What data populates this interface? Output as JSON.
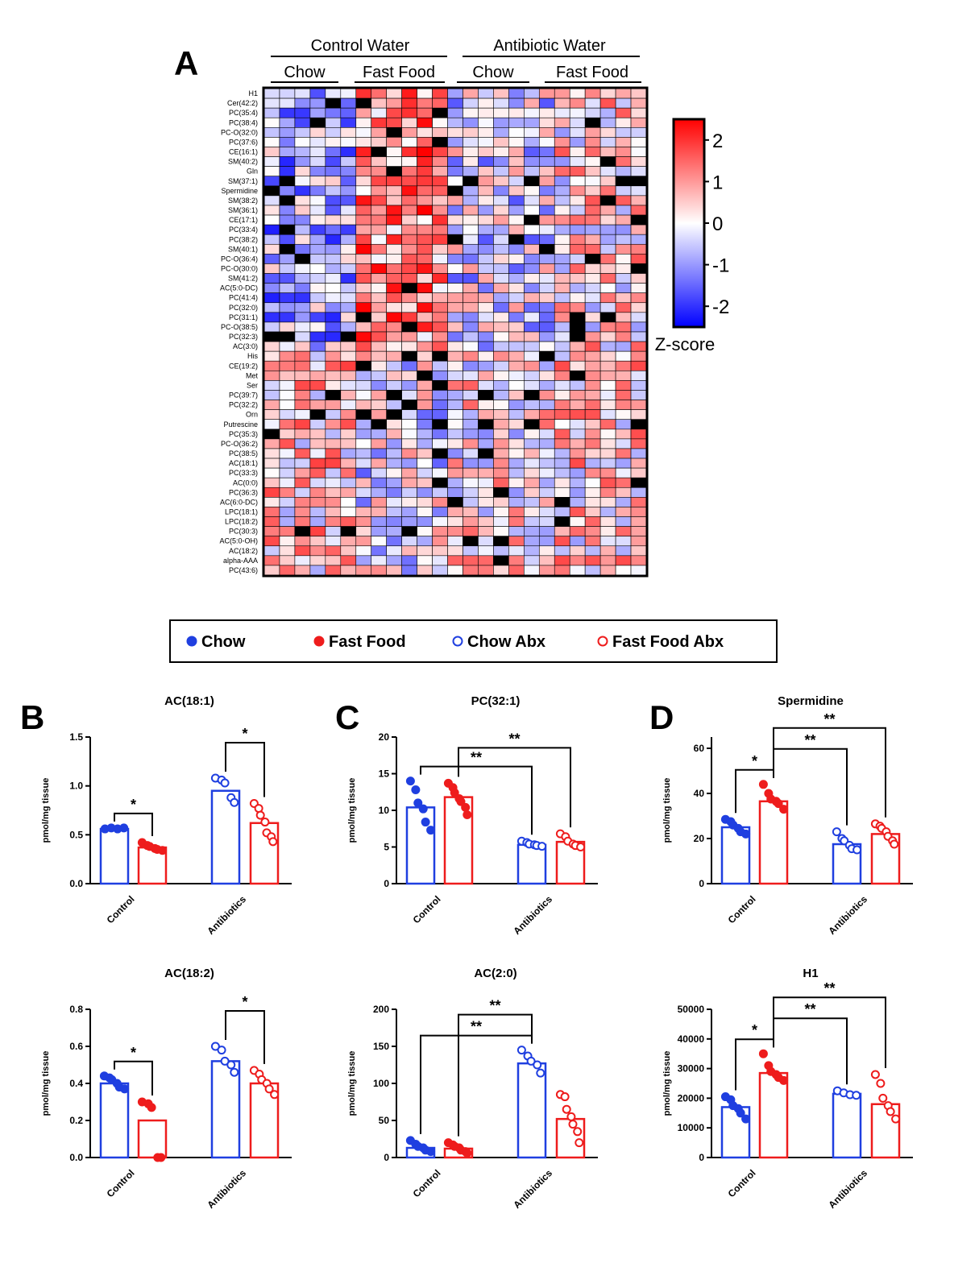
{
  "panel_labels": [
    "A",
    "B",
    "C",
    "D"
  ],
  "heatmap": {
    "group_headers": [
      "Control Water",
      "Antibiotic Water"
    ],
    "sub_headers": [
      "Chow",
      "Fast Food",
      "Chow",
      "Fast Food"
    ],
    "rows": [
      "H1",
      "Cer(42:2)",
      "PC(35:4)",
      "PC(38:4)",
      "PC-O(32:0)",
      "PC(37:6)",
      "CE(16:1)",
      "SM(40:2)",
      "Gln",
      "SM(37:1)",
      "Spermidine",
      "SM(38:2)",
      "SM(36:1)",
      "CE(17:1)",
      "PC(33:4)",
      "PC(38:2)",
      "SM(40:1)",
      "PC-O(36:4)",
      "PC-O(30:0)",
      "SM(41:2)",
      "AC(5:0-DC)",
      "PC(41:4)",
      "PC(32:0)",
      "PC(31:1)",
      "PC-O(38:5)",
      "PC(32:3)",
      "AC(3:0)",
      "His",
      "CE(19:2)",
      "Met",
      "Ser",
      "PC(39:7)",
      "PC(32:2)",
      "Orn",
      "Putrescine",
      "PC(35:3)",
      "PC-O(36:2)",
      "PC(38:5)",
      "AC(18:1)",
      "PC(33:3)",
      "AC(0:0)",
      "PC(36:3)",
      "AC(6:0-DC)",
      "LPC(18:1)",
      "LPC(18:2)",
      "PC(30:3)",
      "AC(5:0-OH)",
      "AC(18:2)",
      "alpha-AAA",
      "PC(43:6)"
    ],
    "columns": 25,
    "colorbar": {
      "ticks": [
        "2",
        "1",
        "0",
        "-1",
        "-2"
      ],
      "range": [
        -2.5,
        2.5
      ],
      "title": "Z-score",
      "colors": {
        "low": "#0000ff",
        "mid": "#ffffff",
        "high": "#ff0000",
        "missing": "#000000"
      }
    }
  },
  "legend": {
    "items": [
      {
        "label": "Chow",
        "color": "#1f3fe0",
        "filled": true
      },
      {
        "label": "Fast Food",
        "color": "#ee1c1c",
        "filled": true
      },
      {
        "label": "Chow Abx",
        "color": "#1f3fe0",
        "filled": false
      },
      {
        "label": "Fast Food Abx",
        "color": "#ee1c1c",
        "filled": false
      }
    ]
  },
  "colors": {
    "chow": "#1f3fe0",
    "fastfood": "#ee1c1c"
  },
  "chart_data": [
    {
      "type": "bar",
      "title": "AC(18:1)",
      "ylabel": "pmol/mg tissue",
      "categories": [
        "Control",
        "Antibiotics"
      ],
      "yticks": [
        "0.0",
        "0.5",
        "1.0",
        "1.5"
      ],
      "ylim": [
        0,
        1.5
      ],
      "series": [
        {
          "name": "Chow",
          "values": [
            0.56,
            0.95
          ],
          "points": [
            [
              0.56,
              0.57,
              0.56,
              0.57
            ],
            [
              1.08,
              1.06,
              1.03,
              0.88,
              0.83
            ]
          ]
        },
        {
          "name": "Fast Food",
          "values": [
            0.37,
            0.62
          ],
          "points": [
            [
              0.42,
              0.39,
              0.38,
              0.36,
              0.35,
              0.34
            ],
            [
              0.82,
              0.77,
              0.7,
              0.63,
              0.52,
              0.48,
              0.43
            ]
          ]
        }
      ],
      "significance": [
        {
          "from": [
            0,
            0
          ],
          "to": [
            0,
            1
          ],
          "label": "*"
        },
        {
          "from": [
            1,
            0
          ],
          "to": [
            1,
            1
          ],
          "label": "*"
        }
      ]
    },
    {
      "type": "bar",
      "title": "PC(32:1)",
      "ylabel": "pmol/mg tissue",
      "categories": [
        "Control",
        "Antibiotics"
      ],
      "yticks": [
        "0",
        "5",
        "10",
        "15",
        "20"
      ],
      "ylim": [
        0,
        20
      ],
      "series": [
        {
          "name": "Chow",
          "values": [
            10.4,
            5.3
          ],
          "points": [
            [
              14.0,
              12.8,
              11.0,
              10.2,
              8.4,
              7.3
            ],
            [
              5.8,
              5.6,
              5.4,
              5.3,
              5.2,
              5.1
            ]
          ]
        },
        {
          "name": "Fast Food",
          "values": [
            11.8,
            5.7
          ],
          "points": [
            [
              13.7,
              13.1,
              12.4,
              11.6,
              11.2,
              10.4,
              9.4
            ],
            [
              6.8,
              6.4,
              5.8,
              5.4,
              5.2,
              5.0
            ]
          ]
        }
      ],
      "significance": [
        {
          "from": [
            0,
            0
          ],
          "to": [
            1,
            0
          ],
          "label": "**"
        },
        {
          "from": [
            0,
            1
          ],
          "to": [
            1,
            1
          ],
          "label": "**"
        }
      ]
    },
    {
      "type": "bar",
      "title": "Spermidine",
      "ylabel": "pmol/mg tissue",
      "categories": [
        "Control",
        "Antibiotics"
      ],
      "yticks": [
        "0",
        "20",
        "40",
        "60"
      ],
      "ylim": [
        0,
        65
      ],
      "series": [
        {
          "name": "Chow",
          "values": [
            25,
            17.5
          ],
          "points": [
            [
              28.5,
              27.5,
              26.0,
              24.5,
              23.0,
              22.0
            ],
            [
              23.0,
              20.0,
              19.0,
              17.0,
              15.5,
              15.0
            ]
          ]
        },
        {
          "name": "Fast Food",
          "values": [
            36.5,
            22
          ],
          "points": [
            [
              44.0,
              40.0,
              37.5,
              36.5,
              35.5,
              33.0
            ],
            [
              26.5,
              25.5,
              24.5,
              23.0,
              21.0,
              19.0,
              17.5
            ]
          ]
        }
      ],
      "significance": [
        {
          "from": [
            0,
            0
          ],
          "to": [
            0,
            1
          ],
          "label": "*"
        },
        {
          "from": [
            0,
            1
          ],
          "to": [
            1,
            0
          ],
          "label": "**"
        },
        {
          "from": [
            0,
            1
          ],
          "to": [
            1,
            1
          ],
          "label": "**"
        }
      ]
    },
    {
      "type": "bar",
      "title": "AC(18:2)",
      "ylabel": "pmol/mg tissue",
      "categories": [
        "Control",
        "Antibiotics"
      ],
      "yticks": [
        "0.0",
        "0.2",
        "0.4",
        "0.6",
        "0.8"
      ],
      "ylim": [
        0,
        0.8
      ],
      "series": [
        {
          "name": "Chow",
          "values": [
            0.4,
            0.52
          ],
          "points": [
            [
              0.44,
              0.43,
              0.42,
              0.4,
              0.38,
              0.37
            ],
            [
              0.6,
              0.58,
              0.52,
              0.5,
              0.46
            ]
          ]
        },
        {
          "name": "Fast Food",
          "values": [
            0.2,
            0.4
          ],
          "points": [
            [
              0.3,
              0.29,
              0.27,
              0.0,
              0.0
            ],
            [
              0.47,
              0.45,
              0.42,
              0.4,
              0.37,
              0.34
            ]
          ]
        }
      ],
      "significance": [
        {
          "from": [
            0,
            0
          ],
          "to": [
            0,
            1
          ],
          "label": "*"
        },
        {
          "from": [
            1,
            0
          ],
          "to": [
            1,
            1
          ],
          "label": "*"
        }
      ]
    },
    {
      "type": "bar",
      "title": "AC(2:0)",
      "ylabel": "pmol/mg tissue",
      "categories": [
        "Control",
        "Antibiotics"
      ],
      "yticks": [
        "0",
        "50",
        "100",
        "150",
        "200"
      ],
      "ylim": [
        0,
        200
      ],
      "series": [
        {
          "name": "Chow",
          "values": [
            13,
            127
          ],
          "points": [
            [
              23,
              18,
              15,
              13,
              10,
              8
            ],
            [
              145,
              137,
              130,
              125,
              114
            ]
          ]
        },
        {
          "name": "Fast Food",
          "values": [
            12,
            52
          ],
          "points": [
            [
              20,
              17,
              15,
              13,
              10,
              8,
              6
            ],
            [
              85,
              82,
              65,
              55,
              45,
              35,
              20
            ]
          ]
        }
      ],
      "significance": [
        {
          "from": [
            0,
            0
          ],
          "to": [
            1,
            0
          ],
          "label": "**"
        },
        {
          "from": [
            0,
            1
          ],
          "to": [
            1,
            0
          ],
          "label": "**"
        }
      ]
    },
    {
      "type": "bar",
      "title": "H1",
      "ylabel": "pmol/mg tissue",
      "categories": [
        "Control",
        "Antibiotics"
      ],
      "yticks": [
        "0",
        "10000",
        "20000",
        "30000",
        "40000",
        "50000"
      ],
      "ylim": [
        0,
        50000
      ],
      "series": [
        {
          "name": "Chow",
          "values": [
            17000,
            21500
          ],
          "points": [
            [
              20500,
              19500,
              17500,
              16500,
              15000,
              13000
            ],
            [
              22500,
              21800,
              21200,
              21000
            ]
          ]
        },
        {
          "name": "Fast Food",
          "values": [
            28500,
            18000
          ],
          "points": [
            [
              35000,
              31000,
              29000,
              28000,
              27000,
              26000
            ],
            [
              28000,
              25000,
              20000,
              17500,
              15500,
              13000
            ]
          ]
        }
      ],
      "significance": [
        {
          "from": [
            0,
            0
          ],
          "to": [
            0,
            1
          ],
          "label": "*"
        },
        {
          "from": [
            0,
            1
          ],
          "to": [
            1,
            0
          ],
          "label": "**"
        },
        {
          "from": [
            0,
            1
          ],
          "to": [
            1,
            1
          ],
          "label": "**"
        }
      ]
    }
  ]
}
